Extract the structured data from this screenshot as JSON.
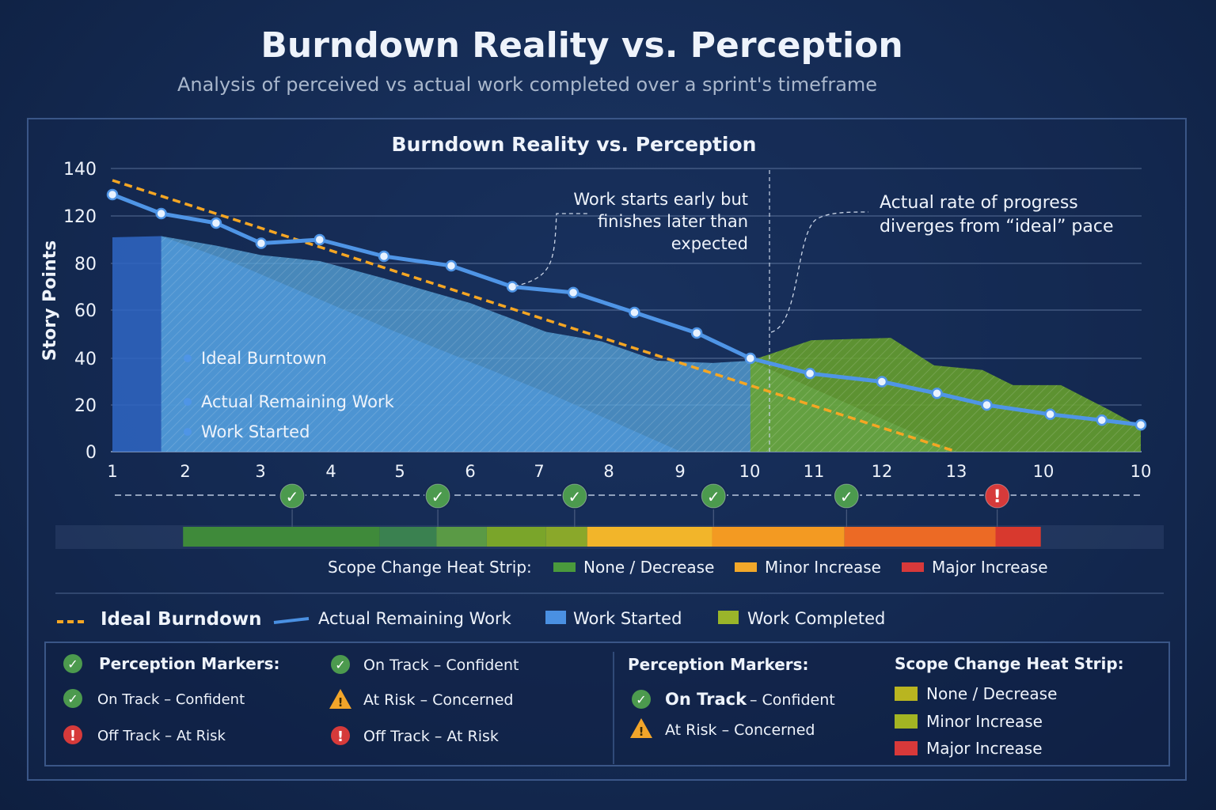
{
  "header": {
    "title": "Burndown Reality vs. Perception",
    "subtitle": "Analysis of perceived vs actual work completed over a sprint's timeframe"
  },
  "chart_data": {
    "type": "line",
    "title": "Burndown Reality vs. Perception",
    "ylabel": "Story Points",
    "xlabel": "",
    "y_tick_labels": [
      "0",
      "20",
      "40",
      "60",
      "80",
      "120",
      "140"
    ],
    "x_tick_labels": [
      "1",
      "2",
      "3",
      "4",
      "5",
      "6",
      "7",
      "8",
      "9",
      "10",
      "11",
      "12",
      "13",
      "10",
      "10"
    ],
    "grid": true,
    "colors": {
      "ideal": "#f5a623",
      "actual": "#4a90e2",
      "started": "#2f6fd0",
      "started_light": "#5aa7dc",
      "completed": "#6fa52c"
    },
    "series": [
      {
        "name": "Ideal Burndown",
        "kind": "dashed-line",
        "points": [
          [
            0,
            135
          ],
          [
            12,
            0
          ]
        ]
      },
      {
        "name": "Actual Remaining Work",
        "kind": "line",
        "points": [
          [
            0,
            129
          ],
          [
            0.67,
            121
          ],
          [
            1.41,
            114
          ],
          [
            2.01,
            97
          ],
          [
            2.84,
            100
          ],
          [
            3.77,
            86
          ],
          [
            4.73,
            79
          ],
          [
            5.61,
            70
          ],
          [
            6.49,
            67.5
          ],
          [
            7.36,
            59
          ],
          [
            8.24,
            50.5
          ],
          [
            9.01,
            40
          ],
          [
            9.94,
            33.5
          ],
          [
            11,
            30
          ],
          [
            11.74,
            25
          ],
          [
            12.35,
            20
          ],
          [
            13.07,
            16
          ],
          [
            13.6,
            13.5
          ],
          [
            14,
            11.5
          ]
        ]
      },
      {
        "name": "Work Started",
        "kind": "area",
        "points": [
          [
            0,
            102
          ],
          [
            0.67,
            103
          ],
          [
            1.59,
            82
          ],
          [
            3.94,
            51
          ],
          [
            6.22,
            24
          ],
          [
            8.01,
            0
          ]
        ]
      },
      {
        "name": "Work Started",
        "kind": "hatched-area",
        "points": [
          [
            0.67,
            103
          ],
          [
            1.41,
            95
          ],
          [
            2.01,
            87
          ],
          [
            2.84,
            82
          ],
          [
            3.77,
            73.6
          ],
          [
            5,
            63
          ],
          [
            6.1,
            51
          ],
          [
            6.9,
            47
          ],
          [
            7.68,
            39
          ],
          [
            8.47,
            38
          ],
          [
            9.01,
            39
          ],
          [
            12,
            0
          ]
        ]
      },
      {
        "name": "Work Completed",
        "kind": "hatched-area",
        "points": [
          [
            9.01,
            39
          ],
          [
            9.96,
            47.5
          ],
          [
            11.12,
            48.5
          ],
          [
            11.7,
            37
          ],
          [
            12.3,
            35
          ],
          [
            12.65,
            28.5
          ],
          [
            13.18,
            28.5
          ],
          [
            13.67,
            18
          ],
          [
            14,
            10.5
          ]
        ]
      }
    ],
    "inline_legend": [
      "Ideal Burntown",
      "Actual Remaining Work",
      "Work Started"
    ],
    "annotations": [
      {
        "lines": [
          "Work starts early but",
          "finishes later than",
          "expected"
        ]
      },
      {
        "lines": [
          "Actual rate of progress",
          "diverges from “ideal” pace"
        ]
      }
    ],
    "perception_markers": [
      {
        "x": 2.45,
        "status": "on-track"
      },
      {
        "x": 4.54,
        "status": "on-track"
      },
      {
        "x": 6.51,
        "status": "on-track"
      },
      {
        "x": 8.48,
        "status": "on-track"
      },
      {
        "x": 10.48,
        "status": "on-track"
      },
      {
        "x": 12.47,
        "status": "off-track"
      }
    ],
    "heat_strip": [
      {
        "from": 0.97,
        "to": 3.71,
        "color": "#3f8a3a"
      },
      {
        "from": 3.71,
        "to": 4.52,
        "color": "#3a8150"
      },
      {
        "from": 4.52,
        "to": 5.24,
        "color": "#5a9a45"
      },
      {
        "from": 5.24,
        "to": 6.1,
        "color": "#7aa52a"
      },
      {
        "from": 6.1,
        "to": 6.69,
        "color": "#8aa82a"
      },
      {
        "from": 6.69,
        "to": 8.46,
        "color": "#f2b52a"
      },
      {
        "from": 8.46,
        "to": 10.45,
        "color": "#f39a22"
      },
      {
        "from": 10.45,
        "to": 12.45,
        "color": "#ec6a25"
      },
      {
        "from": 12.45,
        "to": 12.97,
        "color": "#d8392e"
      }
    ]
  },
  "strip_legend": {
    "label": "Scope Change Heat Strip:",
    "items": [
      {
        "label": "None / Decrease",
        "color": "#4a9a3c"
      },
      {
        "label": "Minor Increase",
        "color": "#f2a82a"
      },
      {
        "label": "Major Increase",
        "color": "#d8393a"
      }
    ]
  },
  "main_legend": [
    {
      "label": "Ideal Burndown",
      "color": "#f5a623"
    },
    {
      "label": "Actual Remaining Work",
      "color": "#4a90e2"
    },
    {
      "label": "Work Started",
      "color": "#4a90e2"
    },
    {
      "label": "Work Completed",
      "color": "#9ab52a"
    }
  ],
  "key_box": {
    "col1": [
      {
        "icon": "check-circle-icon",
        "label": "Perception Markers:"
      },
      {
        "icon": "check-circle-icon",
        "label": "On Track – Confident"
      },
      {
        "icon": "exclamation-circle-icon",
        "label": "Off Track – At Risk"
      }
    ],
    "col2": [
      {
        "icon": "check-circle-icon",
        "label": "On Track – Confident"
      },
      {
        "icon": "warning-triangle-icon",
        "label": "At Risk – Concerned"
      },
      {
        "icon": "exclamation-circle-icon",
        "label": "Off Track – At Risk"
      }
    ],
    "col3_title": "Perception Markers:",
    "col3": [
      {
        "icon": "check-circle-icon",
        "bold": "On Track",
        "label": "– Confident"
      },
      {
        "icon": "warning-triangle-icon",
        "label": "At Risk – Concerned"
      }
    ],
    "col4_title": "Scope Change Heat Strip:",
    "col4": [
      {
        "label": "None / Decrease",
        "color": "#b9b520"
      },
      {
        "label": "Minor Increase",
        "color": "#a3b523"
      },
      {
        "label": "Major Increase",
        "color": "#d8393a"
      }
    ]
  }
}
